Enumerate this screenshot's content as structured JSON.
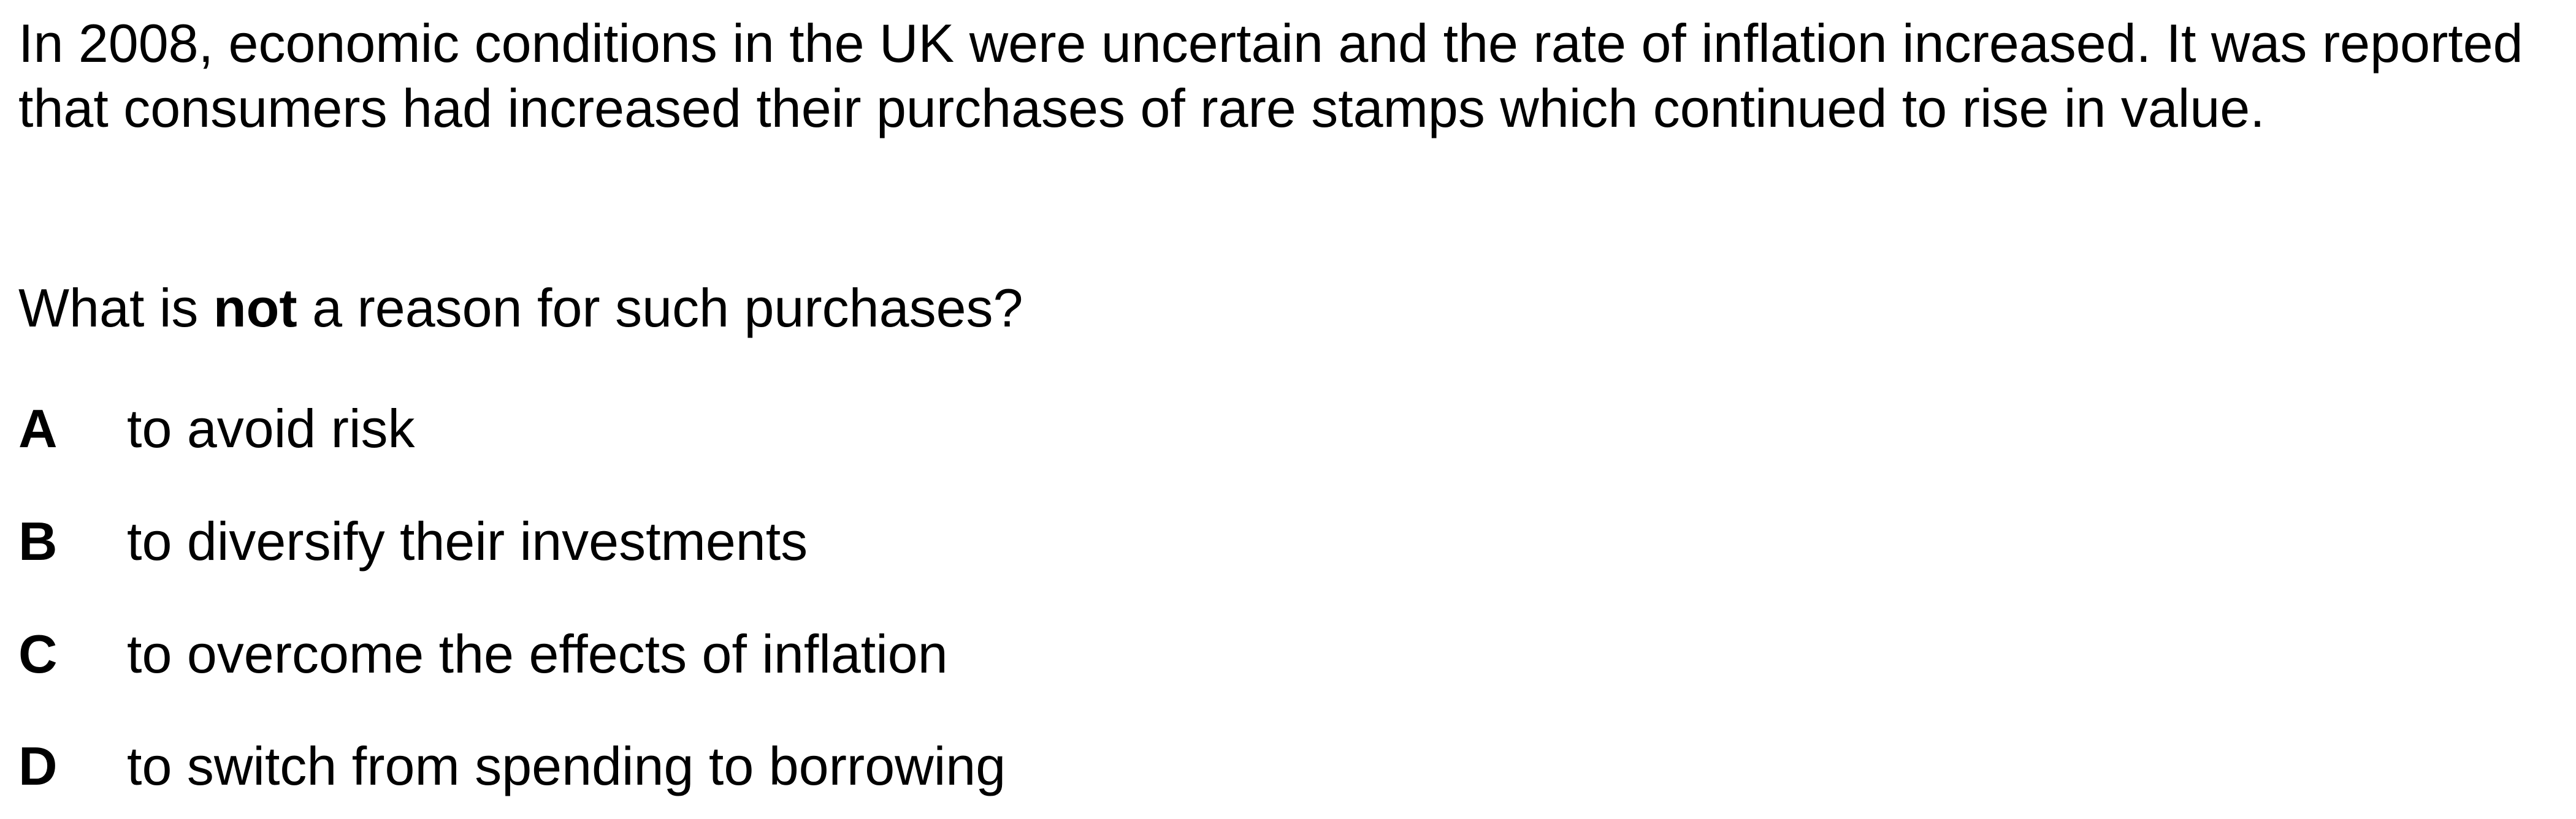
{
  "stem": "In 2008, economic conditions in the UK were uncertain and the rate of inflation increased. It was reported that consumers had increased their purchases of rare stamps which continued to rise in value.",
  "question": {
    "before": "What is ",
    "emphasis": "not",
    "after": " a reason for such purchases?"
  },
  "options": [
    {
      "letter": "A",
      "text": "to avoid risk"
    },
    {
      "letter": "B",
      "text": "to diversify their investments"
    },
    {
      "letter": "C",
      "text": "to overcome the effects of inflation"
    },
    {
      "letter": "D",
      "text": "to switch from spending to borrowing"
    }
  ]
}
